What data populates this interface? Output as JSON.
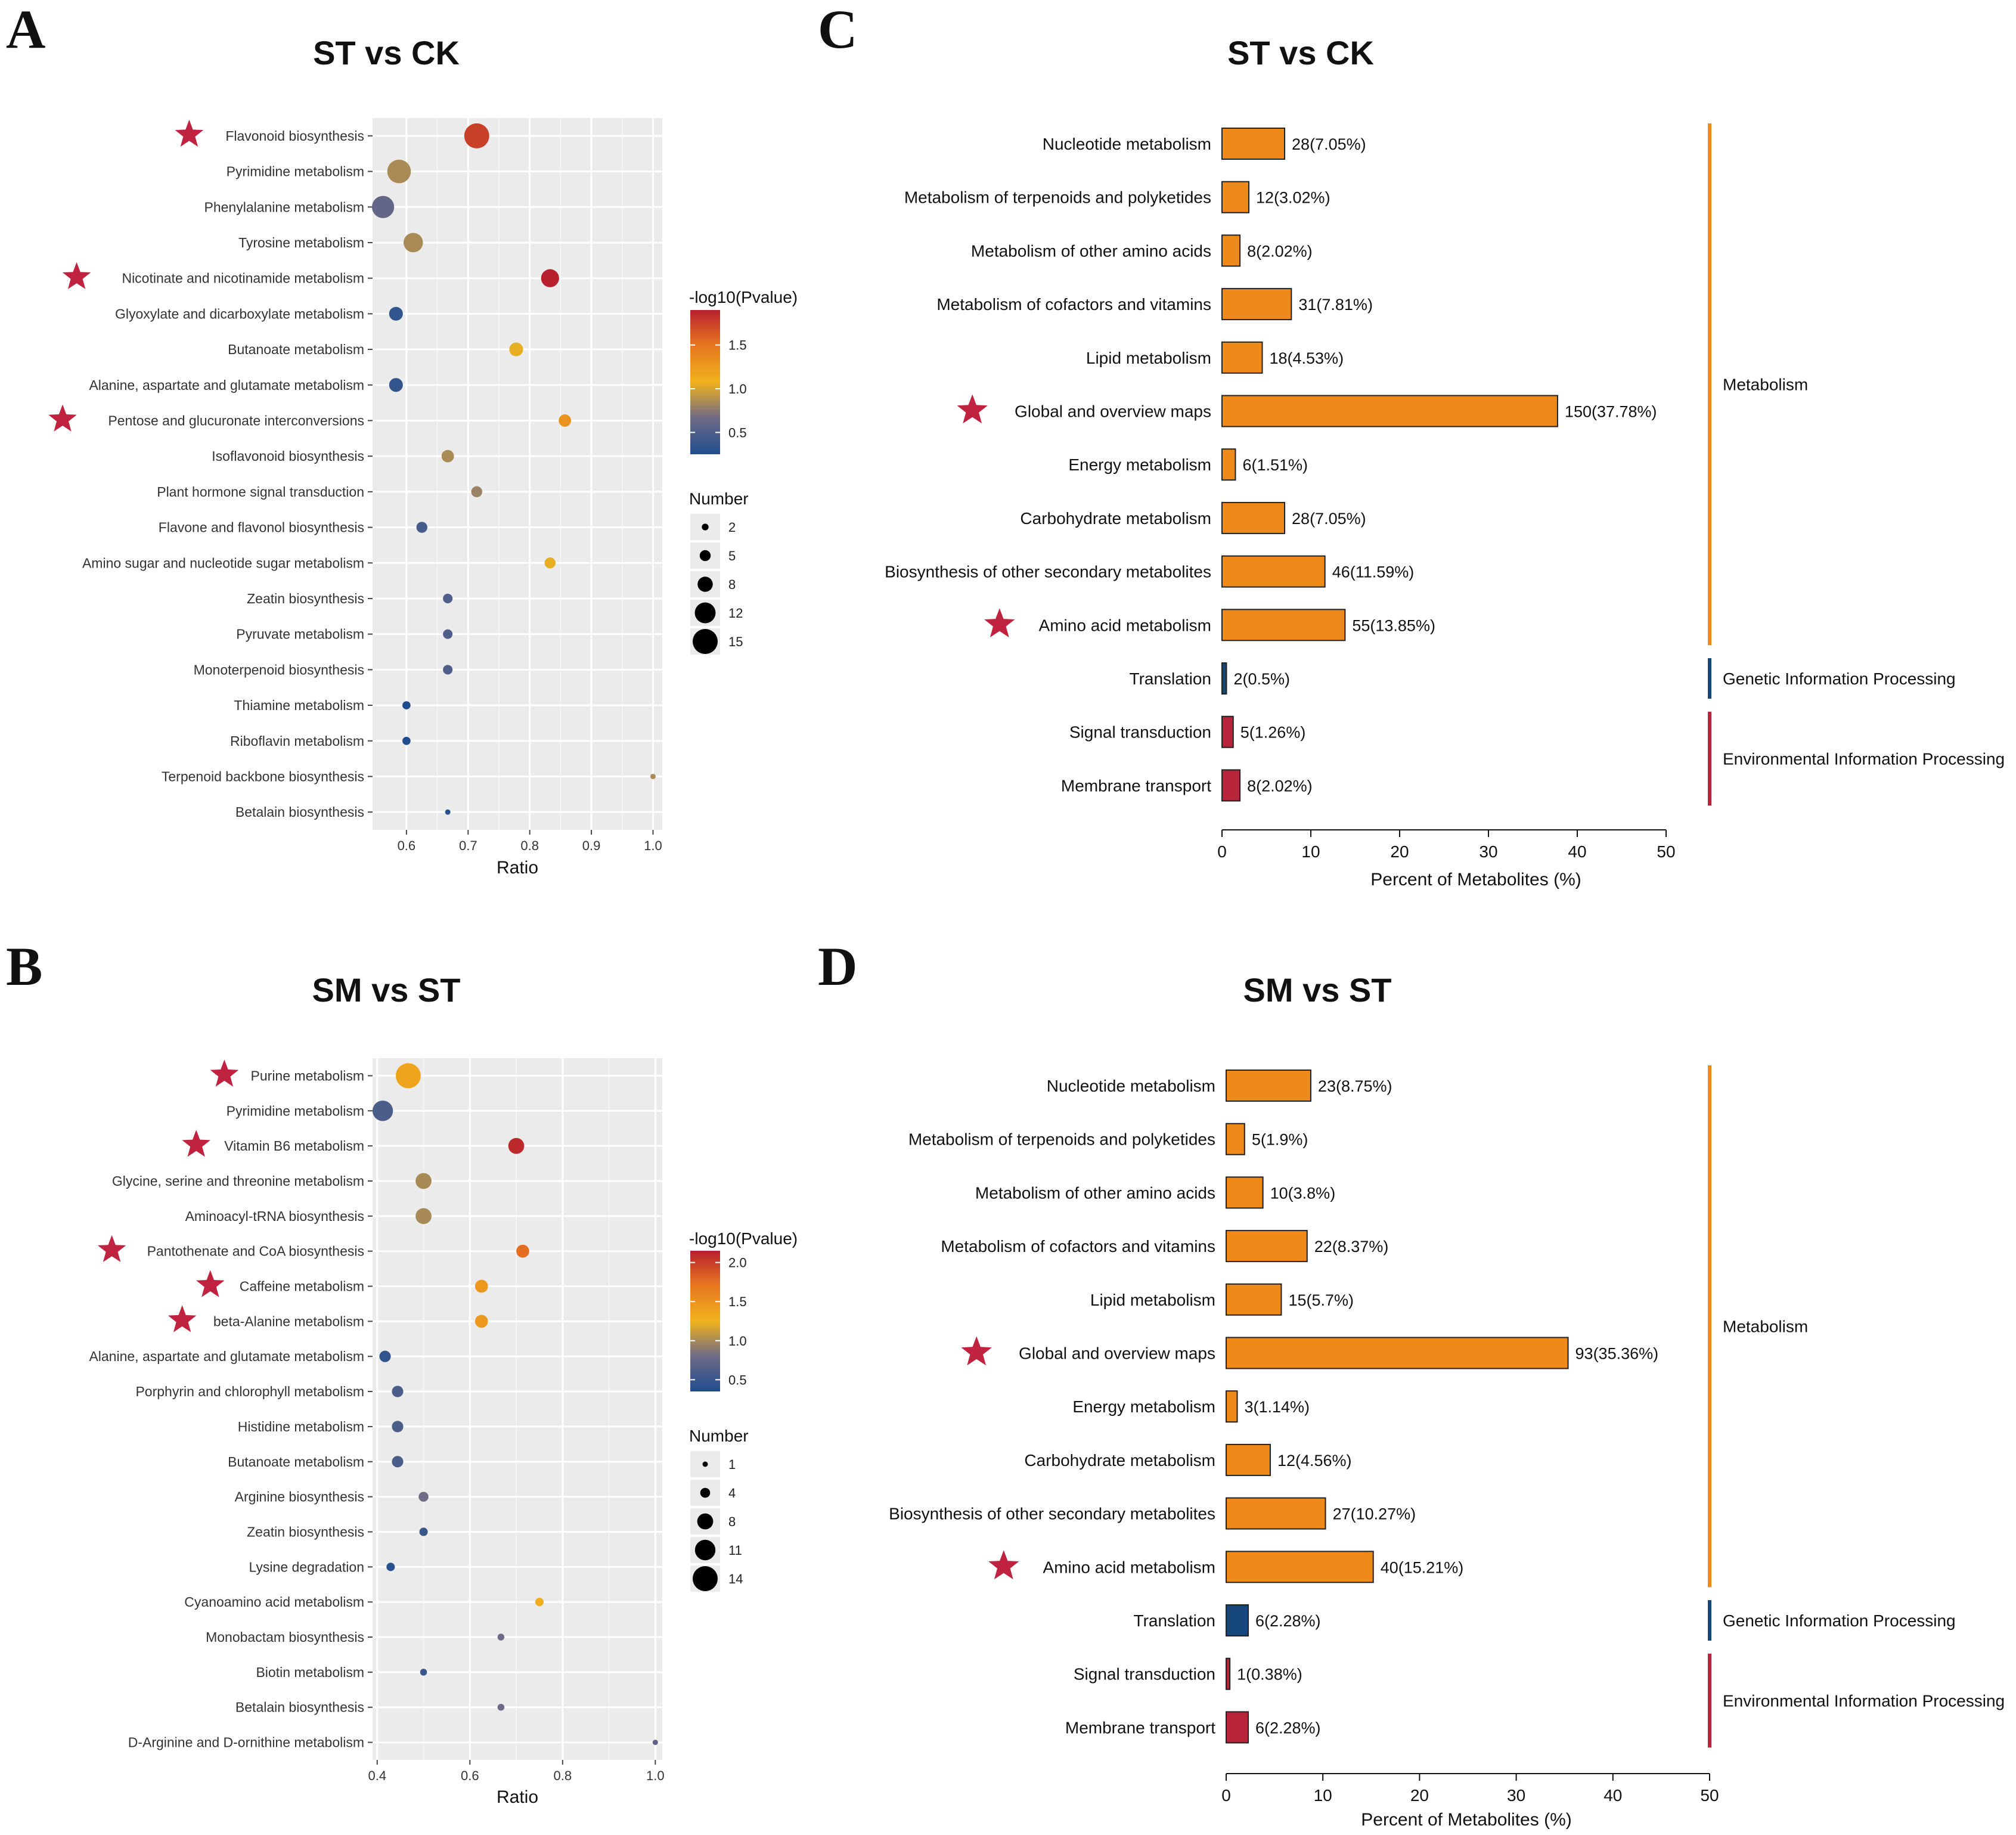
{
  "panels": {
    "A": {
      "letter": "A",
      "title": "ST vs CK",
      "xlabel": "Ratio",
      "color_title": "-log10(Pvalue)",
      "size_title": "Number"
    },
    "B": {
      "letter": "B",
      "title": "SM vs ST",
      "xlabel": "Ratio",
      "color_title": "-log10(Pvalue)",
      "size_title": "Number"
    },
    "C": {
      "letter": "C",
      "title": "ST vs CK",
      "xlabel": "Percent of Metabolites (%)"
    },
    "D": {
      "letter": "D",
      "title": "SM vs ST",
      "xlabel": "Percent of Metabolites (%)"
    }
  },
  "colors": {
    "bar_metabolism": "#ef8a1a",
    "bar_genetic": "#15477a",
    "bar_environmental": "#b8243a",
    "star": "#c0233f",
    "panel_bg": "#ebebeb",
    "grid": "#ffffff"
  },
  "chart_data": [
    {
      "id": "A",
      "type": "scatter",
      "title": "ST vs CK",
      "xlabel": "Ratio",
      "ylabel": "",
      "xlim": [
        0.545,
        1.015
      ],
      "xticks": [
        0.6,
        0.7,
        0.8,
        0.9,
        1.0
      ],
      "xtick_labels": [
        "0.6",
        "0.7",
        "0.8",
        "0.9",
        "1.0"
      ],
      "grid": true,
      "color_legend": {
        "title": "-log10(Pvalue)",
        "min": 0.25,
        "max": 1.9,
        "ticks": [
          0.5,
          1.0,
          1.5
        ],
        "tick_labels": [
          "0.5",
          "1.0",
          "1.5"
        ]
      },
      "size_legend": {
        "title": "Number",
        "values": [
          2,
          5,
          8,
          12,
          15
        ],
        "labels": [
          "2",
          "5",
          "8",
          "12",
          "15"
        ]
      },
      "points": [
        {
          "label": "Flavonoid biosynthesis",
          "ratio": 0.714,
          "number": 15,
          "logp": 1.75,
          "star": true
        },
        {
          "label": "Pyrimidine metabolism",
          "ratio": 0.588,
          "number": 14,
          "logp": 0.85,
          "star": false
        },
        {
          "label": "Phenylalanine metabolism",
          "ratio": 0.562,
          "number": 13,
          "logp": 0.6,
          "star": false
        },
        {
          "label": "Tyrosine metabolism",
          "ratio": 0.611,
          "number": 11,
          "logp": 0.85,
          "star": false
        },
        {
          "label": "Nicotinate and nicotinamide metabolism",
          "ratio": 0.833,
          "number": 10,
          "logp": 1.9,
          "star": true
        },
        {
          "label": "Glyoxylate and dicarboxylate metabolism",
          "ratio": 0.583,
          "number": 7,
          "logp": 0.35,
          "star": false
        },
        {
          "label": "Butanoate metabolism",
          "ratio": 0.778,
          "number": 7,
          "logp": 1.05,
          "star": false
        },
        {
          "label": "Alanine, aspartate and glutamate metabolism",
          "ratio": 0.583,
          "number": 7,
          "logp": 0.35,
          "star": false
        },
        {
          "label": "Pentose and glucuronate interconversions",
          "ratio": 0.857,
          "number": 6,
          "logp": 1.3,
          "star": true
        },
        {
          "label": "Isoflavonoid biosynthesis",
          "ratio": 0.667,
          "number": 6,
          "logp": 0.85,
          "star": false
        },
        {
          "label": "Plant hormone signal transduction",
          "ratio": 0.714,
          "number": 5,
          "logp": 0.8,
          "star": false
        },
        {
          "label": "Flavone and flavonol biosynthesis",
          "ratio": 0.625,
          "number": 5,
          "logp": 0.45,
          "star": false
        },
        {
          "label": "Amino sugar and nucleotide sugar metabolism",
          "ratio": 0.833,
          "number": 5,
          "logp": 1.05,
          "star": false
        },
        {
          "label": "Zeatin biosynthesis",
          "ratio": 0.667,
          "number": 4,
          "logp": 0.5,
          "star": false
        },
        {
          "label": "Pyruvate metabolism",
          "ratio": 0.667,
          "number": 4,
          "logp": 0.5,
          "star": false
        },
        {
          "label": "Monoterpenoid biosynthesis",
          "ratio": 0.667,
          "number": 4,
          "logp": 0.5,
          "star": false
        },
        {
          "label": "Thiamine metabolism",
          "ratio": 0.6,
          "number": 3,
          "logp": 0.25,
          "star": false
        },
        {
          "label": "Riboflavin metabolism",
          "ratio": 0.6,
          "number": 3,
          "logp": 0.25,
          "star": false
        },
        {
          "label": "Terpenoid backbone biosynthesis",
          "ratio": 1.0,
          "number": 1,
          "logp": 0.85,
          "star": false
        },
        {
          "label": "Betalain biosynthesis",
          "ratio": 0.667,
          "number": 1,
          "logp": 0.3,
          "star": false
        }
      ]
    },
    {
      "id": "B",
      "type": "scatter",
      "title": "SM vs ST",
      "xlabel": "Ratio",
      "ylabel": "",
      "xlim": [
        0.39,
        1.015
      ],
      "xticks": [
        0.4,
        0.6,
        0.8,
        1.0
      ],
      "xtick_labels": [
        "0.4",
        "0.6",
        "0.8",
        "1.0"
      ],
      "grid": true,
      "color_legend": {
        "title": "-log10(Pvalue)",
        "min": 0.35,
        "max": 2.15,
        "ticks": [
          0.5,
          1.0,
          1.5,
          2.0
        ],
        "tick_labels": [
          "0.5",
          "1.0",
          "1.5",
          "2.0"
        ]
      },
      "size_legend": {
        "title": "Number",
        "values": [
          1,
          4,
          8,
          11,
          14
        ],
        "labels": [
          "1",
          "4",
          "8",
          "11",
          "14"
        ]
      },
      "points": [
        {
          "label": "Purine metabolism",
          "ratio": 0.467,
          "number": 14,
          "logp": 1.35,
          "star": true
        },
        {
          "label": "Pyrimidine metabolism",
          "ratio": 0.412,
          "number": 11,
          "logp": 0.6,
          "star": false
        },
        {
          "label": "Vitamin B6 metabolism",
          "ratio": 0.7,
          "number": 8,
          "logp": 2.1,
          "star": true
        },
        {
          "label": "Glycine, serine and threonine metabolism",
          "ratio": 0.5,
          "number": 8,
          "logp": 1.0,
          "star": false
        },
        {
          "label": "Aminoacyl-tRNA biosynthesis",
          "ratio": 0.5,
          "number": 8,
          "logp": 1.0,
          "star": false
        },
        {
          "label": "Pantothenate and CoA biosynthesis",
          "ratio": 0.714,
          "number": 6,
          "logp": 1.75,
          "star": true
        },
        {
          "label": "Caffeine metabolism",
          "ratio": 0.625,
          "number": 6,
          "logp": 1.45,
          "star": true
        },
        {
          "label": "beta-Alanine metabolism",
          "ratio": 0.625,
          "number": 6,
          "logp": 1.45,
          "star": true
        },
        {
          "label": "Alanine, aspartate and glutamate metabolism",
          "ratio": 0.417,
          "number": 5,
          "logp": 0.45,
          "star": false
        },
        {
          "label": "Porphyrin and chlorophyll metabolism",
          "ratio": 0.444,
          "number": 5,
          "logp": 0.6,
          "star": false
        },
        {
          "label": "Histidine metabolism",
          "ratio": 0.444,
          "number": 5,
          "logp": 0.6,
          "star": false
        },
        {
          "label": "Butanoate metabolism",
          "ratio": 0.444,
          "number": 5,
          "logp": 0.6,
          "star": false
        },
        {
          "label": "Arginine biosynthesis",
          "ratio": 0.5,
          "number": 4,
          "logp": 0.8,
          "star": false
        },
        {
          "label": "Zeatin biosynthesis",
          "ratio": 0.5,
          "number": 3,
          "logp": 0.5,
          "star": false
        },
        {
          "label": "Lysine degradation",
          "ratio": 0.429,
          "number": 3,
          "logp": 0.4,
          "star": false
        },
        {
          "label": "Cyanoamino acid metabolism",
          "ratio": 0.75,
          "number": 3,
          "logp": 1.3,
          "star": false
        },
        {
          "label": "Monobactam biosynthesis",
          "ratio": 0.667,
          "number": 2,
          "logp": 0.8,
          "star": false
        },
        {
          "label": "Biotin metabolism",
          "ratio": 0.5,
          "number": 2,
          "logp": 0.5,
          "star": false
        },
        {
          "label": "Betalain biosynthesis",
          "ratio": 0.667,
          "number": 2,
          "logp": 0.8,
          "star": false
        },
        {
          "label": "D-Arginine and D-ornithine metabolism",
          "ratio": 1.0,
          "number": 1,
          "logp": 0.7,
          "star": false
        }
      ]
    },
    {
      "id": "C",
      "type": "bar",
      "orientation": "horizontal",
      "title": "ST vs CK",
      "xlabel": "Percent of Metabolites (%)",
      "xlim": [
        0,
        50
      ],
      "xticks": [
        0,
        10,
        20,
        30,
        40,
        50
      ],
      "xtick_labels": [
        "0",
        "10",
        "20",
        "30",
        "40",
        "50"
      ],
      "bars": [
        {
          "label": "Nucleotide metabolism",
          "value": 7.05,
          "text": "28(7.05%)",
          "group": "metabolism",
          "star": false
        },
        {
          "label": "Metabolism of terpenoids and polyketides",
          "value": 3.02,
          "text": "12(3.02%)",
          "group": "metabolism",
          "star": false
        },
        {
          "label": "Metabolism of other amino acids",
          "value": 2.02,
          "text": "8(2.02%)",
          "group": "metabolism",
          "star": false
        },
        {
          "label": "Metabolism of cofactors and vitamins",
          "value": 7.81,
          "text": "31(7.81%)",
          "group": "metabolism",
          "star": false
        },
        {
          "label": "Lipid metabolism",
          "value": 4.53,
          "text": "18(4.53%)",
          "group": "metabolism",
          "star": false
        },
        {
          "label": "Global and overview maps",
          "value": 37.78,
          "text": "150(37.78%)",
          "group": "metabolism",
          "star": true
        },
        {
          "label": "Energy metabolism",
          "value": 1.51,
          "text": "6(1.51%)",
          "group": "metabolism",
          "star": false
        },
        {
          "label": "Carbohydrate metabolism",
          "value": 7.05,
          "text": "28(7.05%)",
          "group": "metabolism",
          "star": false
        },
        {
          "label": "Biosynthesis of other secondary metabolites",
          "value": 11.59,
          "text": "46(11.59%)",
          "group": "metabolism",
          "star": false
        },
        {
          "label": "Amino acid metabolism",
          "value": 13.85,
          "text": "55(13.85%)",
          "group": "metabolism",
          "star": true
        },
        {
          "label": "Translation",
          "value": 0.5,
          "text": "2(0.5%)",
          "group": "genetic",
          "star": false
        },
        {
          "label": "Signal transduction",
          "value": 1.26,
          "text": "5(1.26%)",
          "group": "environmental",
          "star": false
        },
        {
          "label": "Membrane transport",
          "value": 2.02,
          "text": "8(2.02%)",
          "group": "environmental",
          "star": false
        }
      ],
      "groups": [
        {
          "key": "metabolism",
          "label": "Metabolism"
        },
        {
          "key": "genetic",
          "label": "Genetic Information Processing"
        },
        {
          "key": "environmental",
          "label": "Environmental Information Processing"
        }
      ]
    },
    {
      "id": "D",
      "type": "bar",
      "orientation": "horizontal",
      "title": "SM vs ST",
      "xlabel": "Percent of Metabolites (%)",
      "xlim": [
        0,
        50
      ],
      "xticks": [
        0,
        10,
        20,
        30,
        40,
        50
      ],
      "xtick_labels": [
        "0",
        "10",
        "20",
        "30",
        "40",
        "50"
      ],
      "bars": [
        {
          "label": "Nucleotide metabolism",
          "value": 8.75,
          "text": "23(8.75%)",
          "group": "metabolism",
          "star": false
        },
        {
          "label": "Metabolism of terpenoids and polyketides",
          "value": 1.9,
          "text": "5(1.9%)",
          "group": "metabolism",
          "star": false
        },
        {
          "label": "Metabolism of other amino acids",
          "value": 3.8,
          "text": "10(3.8%)",
          "group": "metabolism",
          "star": false
        },
        {
          "label": "Metabolism of cofactors and vitamins",
          "value": 8.37,
          "text": "22(8.37%)",
          "group": "metabolism",
          "star": false
        },
        {
          "label": "Lipid metabolism",
          "value": 5.7,
          "text": "15(5.7%)",
          "group": "metabolism",
          "star": false
        },
        {
          "label": "Global and overview maps",
          "value": 35.36,
          "text": "93(35.36%)",
          "group": "metabolism",
          "star": true
        },
        {
          "label": "Energy metabolism",
          "value": 1.14,
          "text": "3(1.14%)",
          "group": "metabolism",
          "star": false
        },
        {
          "label": "Carbohydrate metabolism",
          "value": 4.56,
          "text": "12(4.56%)",
          "group": "metabolism",
          "star": false
        },
        {
          "label": "Biosynthesis of other secondary metabolites",
          "value": 10.27,
          "text": "27(10.27%)",
          "group": "metabolism",
          "star": false
        },
        {
          "label": "Amino acid metabolism",
          "value": 15.21,
          "text": "40(15.21%)",
          "group": "metabolism",
          "star": true
        },
        {
          "label": "Translation",
          "value": 2.28,
          "text": "6(2.28%)",
          "group": "genetic",
          "star": false
        },
        {
          "label": "Signal transduction",
          "value": 0.38,
          "text": "1(0.38%)",
          "group": "environmental",
          "star": false
        },
        {
          "label": "Membrane transport",
          "value": 2.28,
          "text": "6(2.28%)",
          "group": "environmental",
          "star": false
        }
      ],
      "groups": [
        {
          "key": "metabolism",
          "label": "Metabolism"
        },
        {
          "key": "genetic",
          "label": "Genetic Information Processing"
        },
        {
          "key": "environmental",
          "label": "Environmental Information Processing"
        }
      ]
    }
  ]
}
